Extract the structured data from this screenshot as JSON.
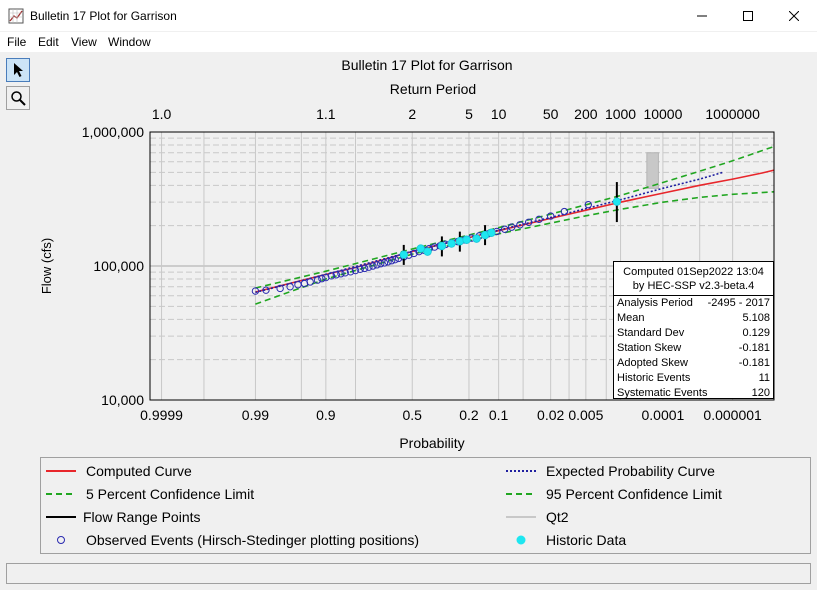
{
  "window": {
    "title": "Bulletin 17 Plot for Garrison",
    "controls": [
      "minimize",
      "maximize",
      "close"
    ]
  },
  "menu": [
    "File",
    "Edit",
    "View",
    "Window"
  ],
  "tools": [
    {
      "name": "pointer-tool",
      "icon": "arrow-pointer-icon",
      "active": true
    },
    {
      "name": "zoom-tool",
      "icon": "magnifier-icon",
      "active": false
    }
  ],
  "chart_data": {
    "type": "scatter",
    "title": "Bulletin 17 Plot for Garrison",
    "top_axis_title": "Return Period",
    "top_ticks": [
      {
        "label": "1.0",
        "p": 0.9999
      },
      {
        "label": "1.1",
        "p": 0.9
      },
      {
        "label": "2",
        "p": 0.5
      },
      {
        "label": "5",
        "p": 0.2
      },
      {
        "label": "10",
        "p": 0.1
      },
      {
        "label": "50",
        "p": 0.02
      },
      {
        "label": "200",
        "p": 0.005
      },
      {
        "label": "1000",
        "p": 0.001
      },
      {
        "label": "10000",
        "p": 0.0001
      },
      {
        "label": "1000000",
        "p": 1e-06
      }
    ],
    "xlabel": "Probability",
    "x_ticks": [
      {
        "label": "0.9999",
        "p": 0.9999
      },
      {
        "label": "0.99",
        "p": 0.99
      },
      {
        "label": "0.9",
        "p": 0.9
      },
      {
        "label": "0.5",
        "p": 0.5
      },
      {
        "label": "0.2",
        "p": 0.2
      },
      {
        "label": "0.1",
        "p": 0.1
      },
      {
        "label": "0.02",
        "p": 0.02
      },
      {
        "label": "0.005",
        "p": 0.005
      },
      {
        "label": "0.0001",
        "p": 0.0001
      },
      {
        "label": "0.000001",
        "p": 1e-06
      }
    ],
    "x_grid_p": [
      0.9999,
      0.999,
      0.99,
      0.95,
      0.9,
      0.8,
      0.5,
      0.2,
      0.1,
      0.05,
      0.02,
      0.01,
      0.005,
      0.002,
      0.001,
      0.0001,
      1e-05,
      1e-06
    ],
    "x_range_p": [
      0.99995,
      4e-08
    ],
    "ylabel": "Flow (cfs)",
    "y_scale": "log",
    "ylim": [
      10000,
      1000000
    ],
    "y_ticks": [
      {
        "label": "10,000",
        "v": 10000
      },
      {
        "label": "100,000",
        "v": 100000
      },
      {
        "label": "1,000,000",
        "v": 1000000
      }
    ],
    "series": [
      {
        "name": "Computed Curve",
        "kind": "line",
        "color": "#e8262b",
        "points": [
          [
            0.99,
            64000
          ],
          [
            0.95,
            78000
          ],
          [
            0.9,
            86500
          ],
          [
            0.8,
            97500
          ],
          [
            0.5,
            128200
          ],
          [
            0.2,
            163000
          ],
          [
            0.1,
            183500
          ],
          [
            0.05,
            202500
          ],
          [
            0.02,
            226500
          ],
          [
            0.01,
            244000
          ],
          [
            0.005,
            261000
          ],
          [
            0.002,
            283000
          ],
          [
            0.001,
            299500
          ],
          [
            0.0001,
            350000
          ],
          [
            1e-05,
            400000
          ],
          [
            1e-06,
            445000
          ],
          [
            1e-07,
            495000
          ],
          [
            4e-08,
            520000
          ]
        ]
      },
      {
        "name": "Expected Probability Curve",
        "kind": "dotted",
        "color": "#1f1fa0",
        "points": [
          [
            0.99,
            63500
          ],
          [
            0.9,
            86500
          ],
          [
            0.5,
            128500
          ],
          [
            0.1,
            185000
          ],
          [
            0.02,
            230000
          ],
          [
            0.005,
            268000
          ],
          [
            0.001,
            312000
          ],
          [
            0.0001,
            380000
          ],
          [
            1e-05,
            445000
          ],
          [
            2e-06,
            500000
          ]
        ]
      },
      {
        "name": "5 Percent Confidence Limit",
        "kind": "dashed",
        "color": "#21a621",
        "points": [
          [
            0.99,
            68500
          ],
          [
            0.9,
            91500
          ],
          [
            0.5,
            134000
          ],
          [
            0.1,
            193000
          ],
          [
            0.02,
            244000
          ],
          [
            0.005,
            286000
          ],
          [
            0.001,
            336000
          ],
          [
            0.0001,
            420000
          ],
          [
            1e-05,
            510000
          ],
          [
            1e-06,
            610000
          ],
          [
            4e-08,
            780000
          ]
        ]
      },
      {
        "name": "95 Percent Confidence Limit",
        "kind": "dashed",
        "color": "#21a621",
        "points": [
          [
            0.99,
            52000
          ],
          [
            0.9,
            80000
          ],
          [
            0.5,
            122500
          ],
          [
            0.1,
            173500
          ],
          [
            0.02,
            209000
          ],
          [
            0.005,
            237000
          ],
          [
            0.001,
            265000
          ],
          [
            0.0001,
            299500
          ],
          [
            1e-05,
            325000
          ],
          [
            1e-06,
            343000
          ],
          [
            4e-08,
            358000
          ]
        ]
      },
      {
        "name": "Flow Range Points",
        "kind": "ticks",
        "color": "#000000"
      },
      {
        "name": "Qt2",
        "kind": "box",
        "color": "#c8c8c8",
        "box": {
          "p_from": 0.00025,
          "p_to": 0.00013,
          "v_from": 380000,
          "v_to": 700000
        }
      },
      {
        "name": "Observed Events (Hirsch-Stedinger plotting positions)",
        "kind": "open-circles",
        "color": "#2a2ab0"
      },
      {
        "name": "Historic Data",
        "kind": "filled-circles",
        "color": "#1ee6f0",
        "points": [
          [
            0.55,
            121500
          ],
          [
            0.45,
            135000
          ],
          [
            0.41,
            128000
          ],
          [
            0.33,
            141000
          ],
          [
            0.28,
            147000
          ],
          [
            0.24,
            153000
          ],
          [
            0.21,
            157000
          ],
          [
            0.17,
            160000
          ],
          [
            0.14,
            170000
          ],
          [
            0.12,
            177000
          ],
          [
            0.0012,
            302000
          ]
        ]
      }
    ],
    "flow_range_points": [
      [
        0.55,
        121000
      ],
      [
        0.33,
        140000
      ],
      [
        0.24,
        152000
      ],
      [
        0.14,
        170000
      ],
      [
        0.0012,
        300000
      ]
    ],
    "observed_events": [
      [
        0.99,
        65000
      ],
      [
        0.985,
        66000
      ],
      [
        0.975,
        68000
      ],
      [
        0.965,
        70000
      ],
      [
        0.955,
        72500
      ],
      [
        0.945,
        74000
      ],
      [
        0.935,
        76000
      ],
      [
        0.92,
        78500
      ],
      [
        0.91,
        80500
      ],
      [
        0.9,
        82000
      ],
      [
        0.885,
        84500
      ],
      [
        0.87,
        86000
      ],
      [
        0.855,
        87500
      ],
      [
        0.84,
        89000
      ],
      [
        0.82,
        90500
      ],
      [
        0.8,
        92500
      ],
      [
        0.78,
        94500
      ],
      [
        0.76,
        96000
      ],
      [
        0.74,
        98000
      ],
      [
        0.72,
        100000
      ],
      [
        0.7,
        102000
      ],
      [
        0.68,
        104000
      ],
      [
        0.66,
        105500
      ],
      [
        0.64,
        107500
      ],
      [
        0.62,
        109500
      ],
      [
        0.6,
        111500
      ],
      [
        0.58,
        114000
      ],
      [
        0.55,
        117000
      ],
      [
        0.52,
        120500
      ],
      [
        0.49,
        124000
      ],
      [
        0.46,
        128000
      ],
      [
        0.43,
        131000
      ],
      [
        0.4,
        135000
      ],
      [
        0.37,
        138500
      ],
      [
        0.34,
        141500
      ],
      [
        0.31,
        145000
      ],
      [
        0.28,
        148500
      ],
      [
        0.25,
        152000
      ],
      [
        0.22,
        156500
      ],
      [
        0.19,
        161500
      ],
      [
        0.16,
        168000
      ],
      [
        0.13,
        174000
      ],
      [
        0.105,
        181000
      ],
      [
        0.085,
        188000
      ],
      [
        0.07,
        195000
      ],
      [
        0.055,
        203000
      ],
      [
        0.042,
        212000
      ],
      [
        0.03,
        223000
      ],
      [
        0.02,
        236000
      ],
      [
        0.012,
        255000
      ],
      [
        0.0045,
        287000
      ]
    ],
    "stats_box": {
      "header1": "Computed 01Sep2022 13:04",
      "header2": "by HEC-SSP v2.3-beta.4",
      "rows": [
        {
          "label": "Analysis Period",
          "value": "-2495 - 2017"
        },
        {
          "label": "Mean",
          "value": "5.108"
        },
        {
          "label": "Standard Dev",
          "value": "0.129"
        },
        {
          "label": "Station Skew",
          "value": "-0.181"
        },
        {
          "label": "Adopted Skew",
          "value": "-0.181"
        },
        {
          "label": "Historic Events",
          "value": "11"
        },
        {
          "label": "Systematic Events",
          "value": "120"
        }
      ]
    },
    "grid": true,
    "legend_position": "bottom"
  },
  "legend": [
    {
      "label": "Computed Curve",
      "style": "solid",
      "color": "#e8262b"
    },
    {
      "label": "Expected Probability Curve",
      "style": "dotted",
      "color": "#1f1fa0"
    },
    {
      "label": "5 Percent Confidence Limit",
      "style": "dashed",
      "color": "#21a621"
    },
    {
      "label": "95 Percent Confidence Limit",
      "style": "dashed",
      "color": "#21a621"
    },
    {
      "label": "Flow Range Points",
      "style": "solid",
      "color": "#000000"
    },
    {
      "label": "Qt2",
      "style": "solid",
      "color": "#c8c8c8"
    },
    {
      "label": "Observed Events (Hirsch-Stedinger plotting positions)",
      "style": "open-circle",
      "color": "#2a2ab0"
    },
    {
      "label": "Historic Data",
      "style": "filled-circle",
      "color": "#1ee6f0"
    }
  ]
}
